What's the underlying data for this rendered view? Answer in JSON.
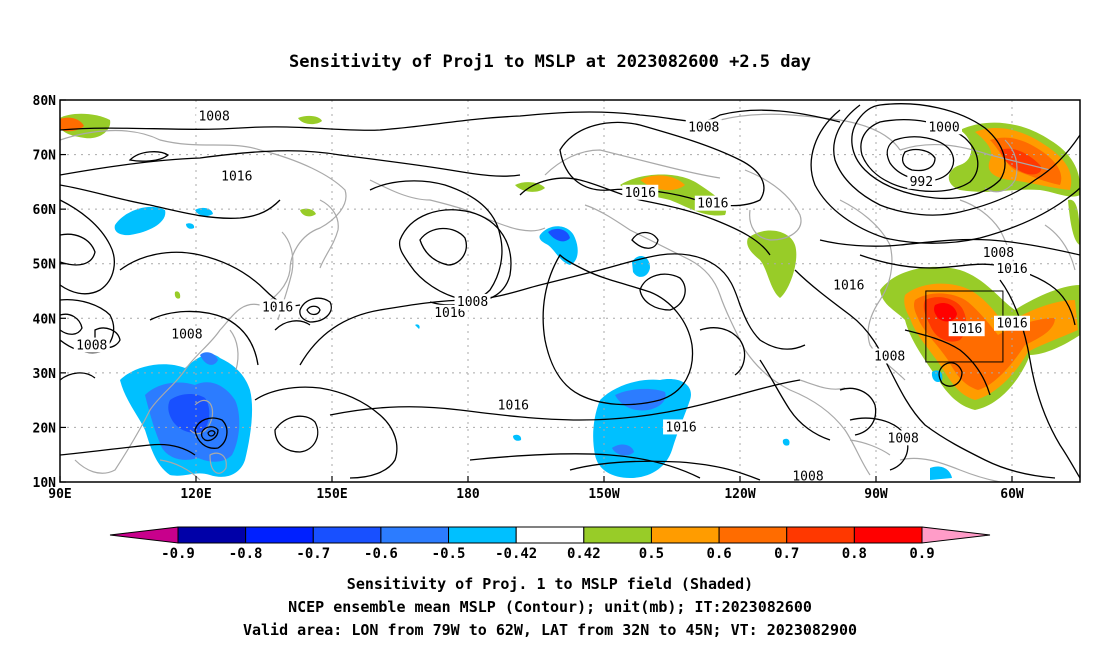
{
  "title": "Sensitivity of Proj1 to MSLP at 2023082600 +2.5 day",
  "map": {
    "lat_labels": [
      "80N",
      "70N",
      "60N",
      "50N",
      "40N",
      "30N",
      "20N",
      "10N"
    ],
    "lon_labels": [
      "90E",
      "120E",
      "150E",
      "180",
      "150W",
      "120W",
      "90W",
      "60W"
    ],
    "contour_labels": [
      {
        "text": "1008",
        "lon": 124,
        "lat": 77
      },
      {
        "text": "1016",
        "lon": 129,
        "lat": 66
      },
      {
        "text": "1016",
        "lon": 138,
        "lat": 42
      },
      {
        "text": "1008",
        "lon": 118,
        "lat": 37
      },
      {
        "text": "1008",
        "lon": 97,
        "lat": 35
      },
      {
        "text": "1016",
        "lon": 176,
        "lat": 41
      },
      {
        "text": "1008",
        "lon": 181,
        "lat": 43
      },
      {
        "text": "1016",
        "lon": 190,
        "lat": 24
      },
      {
        "text": "1008",
        "lon": 232,
        "lat": 75
      },
      {
        "text": "1016",
        "lon": 218,
        "lat": 63
      },
      {
        "text": "1016",
        "lon": 234,
        "lat": 61
      },
      {
        "text": "1016",
        "lon": 264,
        "lat": 46
      },
      {
        "text": "1016",
        "lon": 290,
        "lat": 38
      },
      {
        "text": "1008",
        "lon": 273,
        "lat": 33
      },
      {
        "text": "1016",
        "lon": 227,
        "lat": 20
      },
      {
        "text": "1008",
        "lon": 255,
        "lat": 11
      },
      {
        "text": "1008",
        "lon": 276,
        "lat": 18
      },
      {
        "text": "1000",
        "lon": 285,
        "lat": 75
      },
      {
        "text": "992",
        "lon": 280,
        "lat": 65
      },
      {
        "text": "1008",
        "lon": 297,
        "lat": 52
      },
      {
        "text": "1016",
        "lon": 300,
        "lat": 49
      },
      {
        "text": "1016",
        "lon": 300,
        "lat": 39
      }
    ],
    "valid_box": {
      "lon_min": 281,
      "lon_max": 298,
      "lat_min": 32,
      "lat_max": 45
    }
  },
  "colorbar": {
    "ticks": [
      "-0.9",
      "-0.8",
      "-0.7",
      "-0.6",
      "-0.5",
      "-0.42",
      "0.42",
      "0.5",
      "0.6",
      "0.7",
      "0.8",
      "0.9"
    ],
    "colors": [
      "#0000a8",
      "#0020ff",
      "#1850ff",
      "#2c7cff",
      "#00c0ff",
      "#ffffff",
      "#98cc28",
      "#ff9c00",
      "#ff6c00",
      "#ff3800",
      "#ff0000"
    ],
    "low_cap_color": "#c8008c",
    "high_cap_color": "#ff9cc8"
  },
  "caption": {
    "line1": "Sensitivity of Proj. 1 to MSLP field (Shaded)",
    "line2": "NCEP ensemble mean MSLP (Contour); unit(mb); IT:2023082600",
    "line3": "Valid area: LON from 79W to 62W, LAT from 32N to 45N; VT: 2023082900"
  }
}
